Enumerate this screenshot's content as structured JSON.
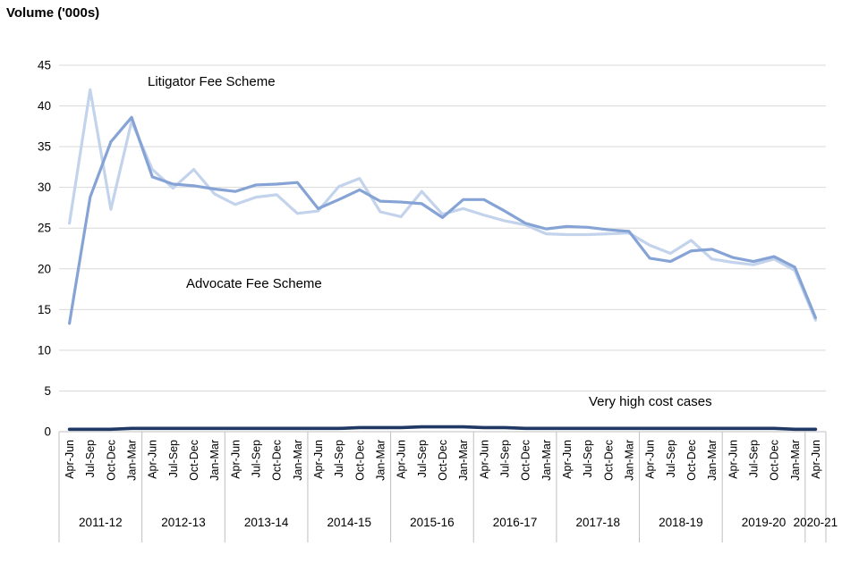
{
  "chart_data": {
    "type": "line",
    "title": "Volume ('000s)",
    "xlabel": "",
    "ylabel": "Volume ('000s)",
    "ylim": [
      0,
      45
    ],
    "ytick_step": 5,
    "grid": true,
    "legend_position": "inline-annotations",
    "year_groups": [
      {
        "label": "2011-12",
        "quarters": [
          "Apr-Jun",
          "Jul-Sep",
          "Oct-Dec",
          "Jan-Mar"
        ]
      },
      {
        "label": "2012-13",
        "quarters": [
          "Apr-Jun",
          "Jul-Sep",
          "Oct-Dec",
          "Jan-Mar"
        ]
      },
      {
        "label": "2013-14",
        "quarters": [
          "Apr-Jun",
          "Jul-Sep",
          "Oct-Dec",
          "Jan-Mar"
        ]
      },
      {
        "label": "2014-15",
        "quarters": [
          "Apr-Jun",
          "Jul-Sep",
          "Oct-Dec",
          "Jan-Mar"
        ]
      },
      {
        "label": "2015-16",
        "quarters": [
          "Apr-Jun",
          "Jul-Sep",
          "Oct-Dec",
          "Jan-Mar"
        ]
      },
      {
        "label": "2016-17",
        "quarters": [
          "Apr-Jun",
          "Jul-Sep",
          "Oct-Dec",
          "Jan-Mar"
        ]
      },
      {
        "label": "2017-18",
        "quarters": [
          "Apr-Jun",
          "Jul-Sep",
          "Oct-Dec",
          "Jan-Mar"
        ]
      },
      {
        "label": "2018-19",
        "quarters": [
          "Apr-Jun",
          "Jul-Sep",
          "Oct-Dec",
          "Jan-Mar"
        ]
      },
      {
        "label": "2019-20",
        "quarters": [
          "Apr-Jun",
          "Jul-Sep",
          "Oct-Dec",
          "Jan-Mar"
        ]
      },
      {
        "label": "2020-21",
        "quarters": [
          "Apr-Jun"
        ]
      }
    ],
    "series": [
      {
        "name": "Litigator Fee Scheme",
        "color": "#c3d3ec",
        "values": [
          25.6,
          42.0,
          27.3,
          38.1,
          32.2,
          29.9,
          32.2,
          29.2,
          27.9,
          28.8,
          29.1,
          26.8,
          27.1,
          30.1,
          31.1,
          27.0,
          26.4,
          29.5,
          26.7,
          27.4,
          26.6,
          25.9,
          25.4,
          24.3,
          24.2,
          24.2,
          24.3,
          24.4,
          22.9,
          21.9,
          23.5,
          21.2,
          20.8,
          20.5,
          21.2,
          19.8,
          13.7
        ]
      },
      {
        "name": "Advocate Fee Scheme",
        "color": "#86a3d6",
        "values": [
          13.3,
          28.8,
          35.6,
          38.6,
          31.3,
          30.4,
          30.2,
          29.8,
          29.5,
          30.3,
          30.4,
          30.6,
          27.4,
          28.5,
          29.7,
          28.3,
          28.2,
          28.0,
          26.3,
          28.5,
          28.5,
          27.1,
          25.6,
          24.9,
          25.2,
          25.1,
          24.8,
          24.6,
          21.3,
          20.9,
          22.2,
          22.4,
          21.4,
          20.9,
          21.5,
          20.2,
          14.0
        ]
      },
      {
        "name": "Very high cost cases",
        "color": "#1f3864",
        "values": [
          0.3,
          0.3,
          0.3,
          0.4,
          0.4,
          0.4,
          0.4,
          0.4,
          0.4,
          0.4,
          0.4,
          0.4,
          0.4,
          0.4,
          0.5,
          0.5,
          0.5,
          0.6,
          0.6,
          0.6,
          0.5,
          0.5,
          0.4,
          0.4,
          0.4,
          0.4,
          0.4,
          0.4,
          0.4,
          0.4,
          0.4,
          0.4,
          0.4,
          0.4,
          0.4,
          0.3,
          0.3
        ]
      }
    ],
    "annotations": [
      {
        "text": "Litigator Fee Scheme"
      },
      {
        "text": "Advocate Fee Scheme"
      },
      {
        "text": "Very high cost cases"
      }
    ],
    "colors": {
      "gridline": "#d9d9d9",
      "axis": "#bfbfbf",
      "text": "#000000"
    }
  }
}
